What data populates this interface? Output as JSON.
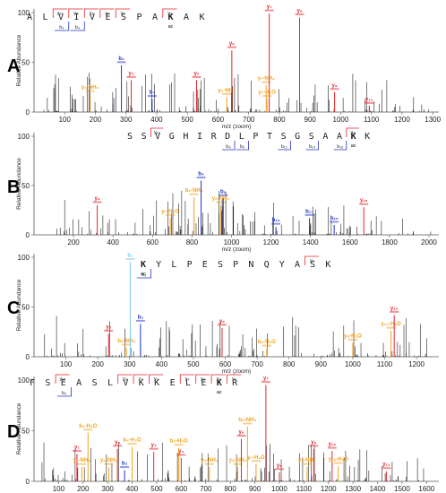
{
  "axis_text": {
    "ylabel": "Relative Abundance",
    "xlabel": "m/z (zoom)",
    "ytick_top": "100",
    "ytick_mid": "50",
    "ytick_zero": "0"
  },
  "colors": {
    "y": "#e8242a",
    "b": "#2233cc",
    "neutral": "#f3a21b",
    "cyan": "#7ec8e8",
    "noise": "#222222"
  },
  "chart_data": [
    {
      "type": "bar",
      "panel": "A",
      "xlim": [
        0,
        1320
      ],
      "ylim": [
        0,
        100
      ],
      "xticks": [
        100,
        200,
        300,
        400,
        500,
        600,
        700,
        800,
        900,
        1000,
        1100,
        1200,
        1300
      ],
      "sequence": [
        "A",
        "L",
        "V",
        "I",
        "V",
        "E",
        "S",
        "P",
        "A",
        "K",
        "A",
        "K"
      ],
      "acetyl_index": 9,
      "y_frags": [
        {
          "label": "y₁₀",
          "pos": 2
        },
        {
          "label": "y₉",
          "pos": 3
        },
        {
          "label": "y₈",
          "pos": 4
        },
        {
          "label": "y₇",
          "pos": 5
        },
        {
          "label": "y₆",
          "pos": 6
        },
        {
          "label": "y₃",
          "pos": 9
        }
      ],
      "b_frags": [
        {
          "label": "b₃",
          "pos": 3
        },
        {
          "label": "b₄",
          "pos": 4
        }
      ],
      "peaks": [
        {
          "mz": 183,
          "h": 18,
          "lbl": "y₂-NH₃",
          "ion": "neutral"
        },
        {
          "mz": 285,
          "h": 47,
          "lbl": "b₃",
          "ion": "b"
        },
        {
          "mz": 317,
          "h": 32,
          "lbl": "y₃",
          "ion": "y"
        },
        {
          "mz": 385,
          "h": 13,
          "lbl": "b₄",
          "ion": "b"
        },
        {
          "mz": 530,
          "h": 32,
          "lbl": "y₅",
          "ion": "y"
        },
        {
          "mz": 628,
          "h": 15,
          "lbl": "y₆-NH₃",
          "ion": "neutral"
        },
        {
          "mz": 645,
          "h": 62,
          "lbl": "y₆",
          "ion": "y"
        },
        {
          "mz": 757,
          "h": 27,
          "lbl": "y₇-NH₃",
          "ion": "neutral"
        },
        {
          "mz": 767,
          "h": 99,
          "lbl": "y₇",
          "ion": "y"
        },
        {
          "mz": 760,
          "h": 13,
          "lbl": "y₇-H₂O",
          "ion": "neutral"
        },
        {
          "mz": 866,
          "h": 95,
          "lbl": "y₈",
          "ion": "y"
        },
        {
          "mz": 980,
          "h": 20,
          "lbl": "y₉",
          "ion": "y"
        },
        {
          "mz": 1093,
          "h": 6,
          "lbl": "y₁₀",
          "ion": "y"
        }
      ]
    },
    {
      "type": "bar",
      "panel": "B",
      "xlim": [
        0,
        2050
      ],
      "ylim": [
        0,
        100
      ],
      "xticks": [
        200,
        400,
        600,
        800,
        1000,
        1200,
        1400,
        1600,
        1800,
        2000
      ],
      "sequence": [
        "S",
        "S",
        "V",
        "G",
        "H",
        "I",
        "R",
        "D",
        "L",
        "P",
        "T",
        "S",
        "G",
        "S",
        "A",
        "A",
        "K",
        "K"
      ],
      "acetyl_index": 16,
      "y_frags": [
        {
          "label": "y₁₆",
          "pos": 2
        },
        {
          "label": "y₂",
          "pos": 16
        }
      ],
      "b_frags": [
        {
          "label": "b₈",
          "pos": 8
        },
        {
          "label": "b₉",
          "pos": 9
        },
        {
          "label": "b₁₂",
          "pos": 12
        },
        {
          "label": "b₁₄",
          "pos": 14
        },
        {
          "label": "b₁₆",
          "pos": 16
        }
      ],
      "peaks": [
        {
          "mz": 320,
          "h": 30,
          "lbl": "y₂",
          "ion": "y"
        },
        {
          "mz": 690,
          "h": 17,
          "lbl": "y₇-H₂O",
          "ion": "neutral"
        },
        {
          "mz": 810,
          "h": 38,
          "lbl": "b₈-NH₃",
          "ion": "neutral"
        },
        {
          "mz": 846,
          "h": 55,
          "lbl": "b₈",
          "ion": "b"
        },
        {
          "mz": 945,
          "h": 30,
          "lbl": "y₈-NH₃",
          "ion": "neutral"
        },
        {
          "mz": 958,
          "h": 37,
          "lbl": "b₉",
          "ion": "b"
        },
        {
          "mz": 1225,
          "h": 8,
          "lbl": "b₁₂",
          "ion": "b"
        },
        {
          "mz": 1395,
          "h": 17,
          "lbl": "b₁₄",
          "ion": "b"
        },
        {
          "mz": 1520,
          "h": 10,
          "lbl": "b₁₅",
          "ion": "b"
        },
        {
          "mz": 1670,
          "h": 28,
          "lbl": "y₁₆",
          "ion": "y"
        }
      ]
    },
    {
      "type": "bar",
      "panel": "C",
      "xlim": [
        0,
        1270
      ],
      "ylim": [
        0,
        100
      ],
      "xticks": [
        100,
        200,
        300,
        400,
        500,
        600,
        700,
        800,
        900,
        1000,
        1100,
        1200
      ],
      "sequence": [
        "K",
        "Y",
        "L",
        "P",
        "E",
        "S",
        "P",
        "N",
        "Q",
        "Y",
        "A",
        "S",
        "K"
      ],
      "acetyl_index": 0,
      "y_frags": [
        {
          "label": "y₂",
          "pos": 11
        }
      ],
      "b_frags": [
        {
          "label": "b₂",
          "pos": 1
        }
      ],
      "peaks": [
        {
          "mz": 234,
          "h": 23,
          "lbl": "y₂",
          "ion": "y"
        },
        {
          "mz": 290,
          "h": 9,
          "lbl": "b₂-NH₃",
          "ion": "neutral"
        },
        {
          "mz": 302,
          "h": 95,
          "lbl": "b₁",
          "ion": "cyan"
        },
        {
          "mz": 334,
          "h": 33,
          "lbl": "b₂",
          "ion": "b"
        },
        {
          "mz": 590,
          "h": 29,
          "lbl": "y₅",
          "ion": "y"
        },
        {
          "mz": 730,
          "h": 8,
          "lbl": "b₆-H₂O",
          "ion": "neutral"
        },
        {
          "mz": 1000,
          "h": 14,
          "lbl": "y₈-H₂O",
          "ion": "neutral"
        },
        {
          "mz": 1120,
          "h": 26,
          "lbl": "y₁₀-H₂O",
          "ion": "neutral"
        },
        {
          "mz": 1130,
          "h": 42,
          "lbl": "y₁₀",
          "ion": "y"
        }
      ]
    },
    {
      "type": "bar",
      "panel": "D",
      "xlim": [
        0,
        1650
      ],
      "ylim": [
        0,
        100
      ],
      "xticks": [
        100,
        200,
        300,
        400,
        500,
        600,
        700,
        800,
        900,
        1000,
        1100,
        1200,
        1300,
        1400,
        1500,
        1600
      ],
      "sequence": [
        "F",
        "S",
        "E",
        "A",
        "S",
        "L",
        "V",
        "K",
        "K",
        "E",
        "L",
        "E",
        "K",
        "R"
      ],
      "acetyl_index": 12,
      "y_frags": [
        {
          "label": "y₁₂",
          "pos": 2
        },
        {
          "label": "y₈",
          "pos": 6
        },
        {
          "label": "y₇",
          "pos": 7
        },
        {
          "label": "y₆",
          "pos": 8
        },
        {
          "label": "y₄",
          "pos": 10
        },
        {
          "label": "y₃",
          "pos": 11
        },
        {
          "label": "y₂",
          "pos": 12
        },
        {
          "label": "y₁",
          "pos": 13
        }
      ],
      "b_frags": [
        {
          "label": "b₃",
          "pos": 3
        }
      ],
      "peaks": [
        {
          "mz": 175,
          "h": 27,
          "lbl": "y₁",
          "ion": "y"
        },
        {
          "mz": 195,
          "h": 14,
          "lbl": "y₁-NH₃",
          "ion": "neutral"
        },
        {
          "mz": 220,
          "h": 48,
          "lbl": "b₃-H₂O",
          "ion": "neutral"
        },
        {
          "mz": 305,
          "h": 14,
          "lbl": "y₂-NH₃",
          "ion": "neutral"
        },
        {
          "mz": 340,
          "h": 32,
          "lbl": "y₂",
          "ion": "y"
        },
        {
          "mz": 369,
          "h": 11,
          "lbl": "b₃",
          "ion": "b"
        },
        {
          "mz": 400,
          "h": 34,
          "lbl": "b₄-H₂O",
          "ion": "neutral"
        },
        {
          "mz": 488,
          "h": 29,
          "lbl": "y₃",
          "ion": "y"
        },
        {
          "mz": 590,
          "h": 33,
          "lbl": "b₆-H₂O",
          "ion": "neutral"
        },
        {
          "mz": 600,
          "h": 23,
          "lbl": "y₄",
          "ion": "y"
        },
        {
          "mz": 715,
          "h": 14,
          "lbl": "y₅-NH₃",
          "ion": "neutral"
        },
        {
          "mz": 830,
          "h": 14,
          "lbl": "y₆-NH₃",
          "ion": "neutral"
        },
        {
          "mz": 845,
          "h": 42,
          "lbl": "y₆",
          "ion": "y"
        },
        {
          "mz": 870,
          "h": 54,
          "lbl": "b₈-NH₃",
          "ion": "neutral"
        },
        {
          "mz": 905,
          "h": 17,
          "lbl": "y₇-H₂O",
          "ion": "neutral"
        },
        {
          "mz": 945,
          "h": 95,
          "lbl": "y₇",
          "ion": "y"
        },
        {
          "mz": 1000,
          "h": 9,
          "lbl": "y₈",
          "ion": "y"
        },
        {
          "mz": 1140,
          "h": 32,
          "lbl": "y₉",
          "ion": "y"
        },
        {
          "mz": 1113,
          "h": 14,
          "lbl": "y₉-NH₃",
          "ion": "neutral"
        },
        {
          "mz": 1215,
          "h": 30,
          "lbl": "y₁₀",
          "ion": "y"
        },
        {
          "mz": 1240,
          "h": 15,
          "lbl": "y₁₀-H₂O",
          "ion": "neutral"
        },
        {
          "mz": 1436,
          "h": 10,
          "lbl": "y₁₂",
          "ion": "y"
        }
      ]
    }
  ]
}
